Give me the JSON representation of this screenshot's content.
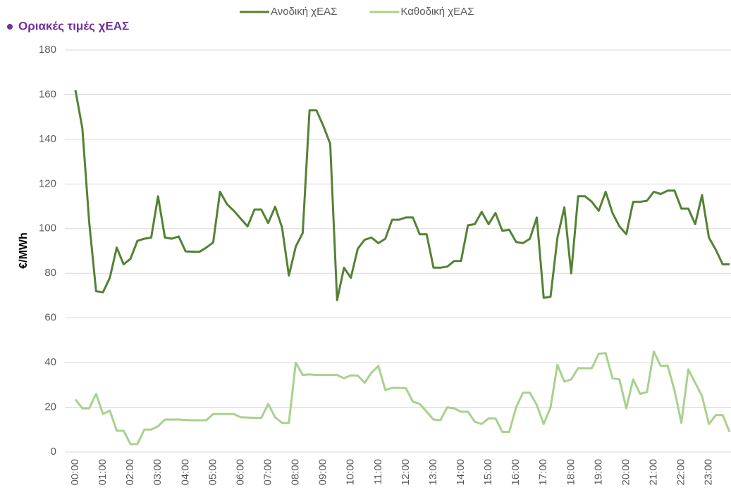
{
  "chart_data": {
    "type": "line",
    "title": "Οριακές τιμές χΕΑΣ",
    "y_label": "€/MWh",
    "categories": [
      "00:00",
      null,
      null,
      null,
      "01:00",
      null,
      null,
      null,
      "02:00",
      null,
      null,
      null,
      "03:00",
      null,
      null,
      null,
      "04:00",
      null,
      null,
      null,
      "05:00",
      null,
      null,
      null,
      "06:00",
      null,
      null,
      null,
      "07:00",
      null,
      null,
      null,
      "08:00",
      null,
      null,
      null,
      "09:00",
      null,
      null,
      null,
      "10:00",
      null,
      null,
      null,
      "11:00",
      null,
      null,
      null,
      "12:00",
      null,
      null,
      null,
      "13:00",
      null,
      null,
      null,
      "14:00",
      null,
      null,
      null,
      "15:00",
      null,
      null,
      null,
      "16:00",
      null,
      null,
      null,
      "17:00",
      null,
      null,
      null,
      "18:00",
      null,
      null,
      null,
      "19:00",
      null,
      null,
      null,
      "20:00",
      null,
      null,
      null,
      "21:00",
      null,
      null,
      null,
      "22:00",
      null,
      null,
      null,
      "23:00",
      null,
      null,
      null
    ],
    "series": [
      {
        "name": "Ανοδική χΕΑΣ",
        "color": "#548235",
        "values": [
          162,
          145,
          103,
          72,
          71.5,
          78,
          91.5,
          84,
          86.5,
          94.5,
          95.5,
          96,
          114.5,
          96,
          95.5,
          96.5,
          89.8,
          89.7,
          89.6,
          91.5,
          93.8,
          116.5,
          111,
          108,
          104.5,
          101,
          108.5,
          108.5,
          102.5,
          109.8,
          100.5,
          79,
          92,
          98,
          153,
          153,
          146,
          138,
          68,
          82.5,
          78,
          91,
          95,
          96,
          93.5,
          95.5,
          104,
          104,
          105,
          105,
          97.5,
          97.5,
          82.5,
          82.5,
          83,
          85.5,
          85.5,
          101.5,
          102,
          107.5,
          102,
          107,
          99,
          99.5,
          94,
          93.5,
          95.5,
          105,
          69,
          69.5,
          96,
          109.5,
          80,
          114.5,
          114.5,
          112,
          108,
          116.5,
          107,
          101,
          97.5,
          112,
          112,
          112.5,
          116.5,
          115.5,
          117,
          117,
          109,
          109,
          102,
          115,
          96,
          90.5,
          84,
          84
        ]
      },
      {
        "name": "Καθοδική χΕΑΣ",
        "color": "#a9d18e",
        "values": [
          23.5,
          19.5,
          19.5,
          26,
          17,
          18.5,
          9.5,
          9.5,
          3.5,
          3.5,
          10,
          10,
          11.5,
          14.5,
          14.5,
          14.5,
          14.3,
          14.2,
          14.2,
          14.2,
          17,
          17,
          17,
          17,
          15.5,
          15.4,
          15.3,
          15.3,
          21.5,
          15.5,
          13,
          13,
          40,
          34.5,
          34.7,
          34.5,
          34.5,
          34.5,
          34.5,
          33,
          34.3,
          34.2,
          31,
          35.5,
          38.5,
          27.7,
          28.7,
          28.7,
          28.5,
          22.5,
          21.5,
          18,
          14.5,
          14.2,
          20,
          19.5,
          18,
          18,
          13.5,
          12.5,
          15,
          15,
          9,
          9,
          20,
          26.5,
          26.5,
          21,
          12.5,
          20,
          39,
          31.5,
          32.5,
          37.5,
          37.5,
          37.5,
          44,
          44.2,
          33,
          32.5,
          19.5,
          32.5,
          26,
          26.8,
          45,
          38.5,
          38.7,
          27.5,
          13,
          37,
          31,
          25,
          12.5,
          16.5,
          16.5,
          9
        ]
      }
    ],
    "ylim": [
      0,
      180
    ],
    "yticks": [
      0,
      20,
      40,
      60,
      80,
      100,
      120,
      140,
      160,
      180
    ],
    "grid": true,
    "legend": "top"
  }
}
